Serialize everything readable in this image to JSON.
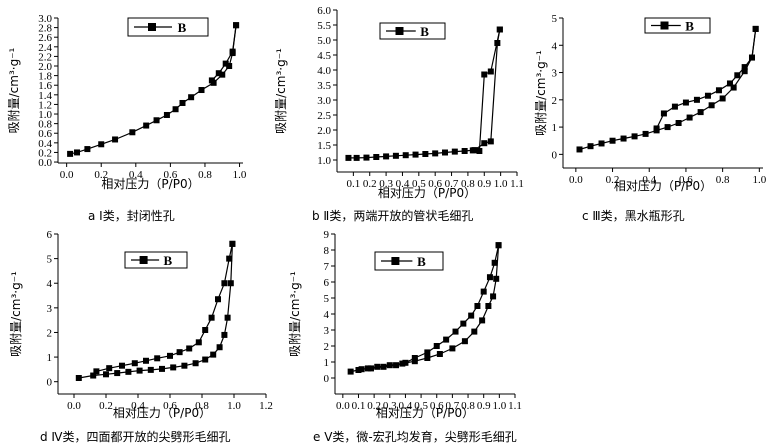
{
  "chart_data": [
    {
      "type": "line",
      "xlabel": "相对压力（P/P0）",
      "ylabel": "吸附量/cm³·g⁻¹",
      "caption": "a Ⅰ类，封闭性孔",
      "legend": "B",
      "xlim": [
        -0.05,
        1.02
      ],
      "ylim": [
        -0.02,
        3.0
      ],
      "xticks": [
        "0.0",
        "0.2",
        "0.4",
        "0.6",
        "0.8",
        "1.0"
      ],
      "xtick_values": [
        0,
        0.2,
        0.4,
        0.6,
        0.8,
        1.0
      ],
      "yticks": [
        "0.0",
        "0.2",
        "0.4",
        "0.6",
        "0.8",
        "1.0",
        "1.2",
        "1.4",
        "1.6",
        "1.8",
        "2.0",
        "2.2",
        "2.4",
        "2.6",
        "2.8",
        "3.0"
      ],
      "ytick_values": [
        0,
        0.2,
        0.4,
        0.6,
        0.8,
        1.0,
        1.2,
        1.4,
        1.6,
        1.8,
        2.0,
        2.2,
        2.4,
        2.6,
        2.8,
        3.0
      ],
      "series": [
        {
          "kind": "adsorption",
          "x": [
            0.02,
            0.06,
            0.12,
            0.2,
            0.28,
            0.38,
            0.46,
            0.52,
            0.58,
            0.63,
            0.67,
            0.72,
            0.78,
            0.85,
            0.9,
            0.94,
            0.96,
            0.98
          ],
          "y": [
            0.17,
            0.2,
            0.27,
            0.37,
            0.47,
            0.62,
            0.76,
            0.87,
            0.98,
            1.1,
            1.23,
            1.35,
            1.5,
            1.65,
            1.82,
            2.0,
            2.27,
            2.85
          ]
        },
        {
          "kind": "desorption",
          "x": [
            0.98,
            0.96,
            0.92,
            0.88,
            0.84
          ],
          "y": [
            2.85,
            2.3,
            2.05,
            1.85,
            1.7
          ]
        }
      ]
    },
    {
      "type": "line",
      "xlabel": "相对压力（P/P0）",
      "ylabel": "吸附量/cm³·g⁻¹",
      "caption": "b Ⅱ类，两端开放的管状毛细孔",
      "legend": "B",
      "xlim": [
        0.0,
        1.1
      ],
      "ylim": [
        0.6,
        6.0
      ],
      "xticks": [
        "0.1",
        "0.2",
        "0.3",
        "0.4",
        "0.5",
        "0.6",
        "0.7",
        "0.8",
        "0.9",
        "1.0",
        "1.1"
      ],
      "xtick_values": [
        0.1,
        0.2,
        0.3,
        0.4,
        0.5,
        0.6,
        0.7,
        0.8,
        0.9,
        1.0,
        1.1
      ],
      "yticks": [
        "1.0",
        "1.5",
        "2.0",
        "2.5",
        "3.0",
        "3.5",
        "4.0",
        "4.5",
        "5.0",
        "5.5",
        "6.0"
      ],
      "ytick_values": [
        1.0,
        1.5,
        2.0,
        2.5,
        3.0,
        3.5,
        4.0,
        4.5,
        5.0,
        5.5,
        6.0
      ],
      "series": [
        {
          "kind": "adsorption",
          "x": [
            0.07,
            0.12,
            0.18,
            0.24,
            0.3,
            0.36,
            0.42,
            0.48,
            0.54,
            0.6,
            0.66,
            0.72,
            0.78,
            0.84,
            0.9,
            0.94,
            0.98,
            0.995
          ],
          "y": [
            1.07,
            1.07,
            1.08,
            1.1,
            1.12,
            1.14,
            1.16,
            1.18,
            1.2,
            1.22,
            1.25,
            1.28,
            1.3,
            1.33,
            1.56,
            1.62,
            4.9,
            5.35
          ]
        },
        {
          "kind": "desorption",
          "x": [
            0.995,
            0.94,
            0.9,
            0.87,
            0.83
          ],
          "y": [
            5.35,
            3.95,
            3.85,
            1.3,
            1.32
          ]
        }
      ]
    },
    {
      "type": "line",
      "xlabel": "相对压力（P/P0）",
      "ylabel": "吸附量/cm³·g⁻¹",
      "caption": "c Ⅲ类，黑水瓶形孔",
      "legend": "B",
      "xlim": [
        -0.07,
        1.02
      ],
      "ylim": [
        -0.5,
        5.0
      ],
      "xticks": [
        "0.0",
        "0.2",
        "0.4",
        "0.6",
        "0.8",
        "1.0"
      ],
      "xtick_values": [
        0,
        0.2,
        0.4,
        0.6,
        0.8,
        1.0
      ],
      "yticks": [
        "0",
        "1",
        "2",
        "3",
        "4",
        "5"
      ],
      "ytick_values": [
        0,
        1,
        2,
        3,
        4,
        5
      ],
      "series": [
        {
          "kind": "adsorption",
          "x": [
            0.02,
            0.08,
            0.14,
            0.2,
            0.26,
            0.32,
            0.38,
            0.44,
            0.5,
            0.56,
            0.62,
            0.68,
            0.74,
            0.8,
            0.86,
            0.92,
            0.96,
            0.98
          ],
          "y": [
            0.18,
            0.3,
            0.4,
            0.5,
            0.58,
            0.66,
            0.75,
            0.88,
            1.0,
            1.15,
            1.35,
            1.55,
            1.8,
            2.05,
            2.45,
            3.05,
            3.55,
            4.6
          ]
        },
        {
          "kind": "desorption",
          "x": [
            0.98,
            0.96,
            0.92,
            0.88,
            0.84,
            0.78,
            0.72,
            0.66,
            0.6,
            0.54,
            0.48,
            0.44
          ],
          "y": [
            4.6,
            3.55,
            3.2,
            2.9,
            2.6,
            2.35,
            2.15,
            2.0,
            1.9,
            1.75,
            1.5,
            0.95
          ]
        }
      ]
    },
    {
      "type": "line",
      "xlabel": "相对压力（P/P0）",
      "ylabel": "吸附量/cm³·g⁻¹",
      "caption": "d Ⅳ类，四面都开放的尖劈形毛细孔",
      "legend": "B",
      "xlim": [
        -0.1,
        1.2
      ],
      "ylim": [
        -0.5,
        6.0
      ],
      "xticks": [
        "0.0",
        "0.2",
        "0.4",
        "0.6",
        "0.8",
        "1.0",
        "1.2"
      ],
      "xtick_values": [
        0,
        0.2,
        0.4,
        0.6,
        0.8,
        1.0,
        1.2
      ],
      "yticks": [
        "0",
        "1",
        "2",
        "3",
        "4",
        "5",
        "6"
      ],
      "ytick_values": [
        0,
        1,
        2,
        3,
        4,
        5,
        6
      ],
      "series": [
        {
          "kind": "adsorption",
          "x": [
            0.03,
            0.12,
            0.2,
            0.27,
            0.34,
            0.41,
            0.48,
            0.55,
            0.62,
            0.69,
            0.76,
            0.82,
            0.87,
            0.91,
            0.94,
            0.96,
            0.98,
            0.99
          ],
          "y": [
            0.15,
            0.25,
            0.3,
            0.35,
            0.4,
            0.45,
            0.48,
            0.52,
            0.58,
            0.65,
            0.75,
            0.9,
            1.1,
            1.4,
            1.9,
            2.6,
            4.0,
            5.6
          ]
        },
        {
          "kind": "desorption",
          "x": [
            0.99,
            0.97,
            0.94,
            0.9,
            0.86,
            0.82,
            0.78,
            0.72,
            0.66,
            0.6,
            0.52,
            0.45,
            0.38,
            0.3,
            0.22,
            0.14
          ],
          "y": [
            5.6,
            5.0,
            4.0,
            3.35,
            2.6,
            2.1,
            1.6,
            1.35,
            1.2,
            1.05,
            0.95,
            0.85,
            0.75,
            0.65,
            0.55,
            0.42
          ]
        }
      ]
    },
    {
      "type": "line",
      "xlabel": "相对压力（P/P0）",
      "ylabel": "吸附量/cm³·g⁻¹",
      "caption": "e Ⅴ类，微-宏孔均发育，尖劈形毛细孔",
      "legend": "B",
      "xlim": [
        -0.05,
        1.1
      ],
      "ylim": [
        -1.0,
        9.0
      ],
      "xticks": [
        "0.0",
        "0.1",
        "0.2",
        "0.3",
        "0.4",
        "0.5",
        "0.6",
        "0.7",
        "0.8",
        "0.9",
        "1.0",
        "1.1"
      ],
      "xtick_values": [
        0,
        0.1,
        0.2,
        0.3,
        0.4,
        0.5,
        0.6,
        0.7,
        0.8,
        0.9,
        1.0,
        1.1
      ],
      "yticks": [
        "0",
        "1",
        "2",
        "3",
        "4",
        "5",
        "6",
        "7",
        "8",
        "9"
      ],
      "ytick_values": [
        0,
        1,
        2,
        3,
        4,
        5,
        6,
        7,
        8,
        9
      ],
      "series": [
        {
          "kind": "adsorption",
          "x": [
            0.05,
            0.1,
            0.16,
            0.22,
            0.3,
            0.38,
            0.46,
            0.54,
            0.62,
            0.7,
            0.78,
            0.84,
            0.89,
            0.93,
            0.96,
            0.98,
            0.995
          ],
          "y": [
            0.4,
            0.5,
            0.6,
            0.7,
            0.8,
            0.9,
            1.05,
            1.25,
            1.5,
            1.85,
            2.3,
            2.9,
            3.6,
            4.5,
            5.1,
            6.2,
            8.3
          ]
        },
        {
          "kind": "desorption",
          "x": [
            0.995,
            0.97,
            0.94,
            0.9,
            0.86,
            0.82,
            0.77,
            0.72,
            0.66,
            0.6,
            0.54,
            0.46,
            0.4,
            0.34,
            0.26,
            0.18,
            0.12
          ],
          "y": [
            8.3,
            7.2,
            6.3,
            5.4,
            4.5,
            3.9,
            3.4,
            2.9,
            2.4,
            2.0,
            1.6,
            1.25,
            0.95,
            0.8,
            0.7,
            0.6,
            0.55
          ]
        }
      ]
    }
  ]
}
